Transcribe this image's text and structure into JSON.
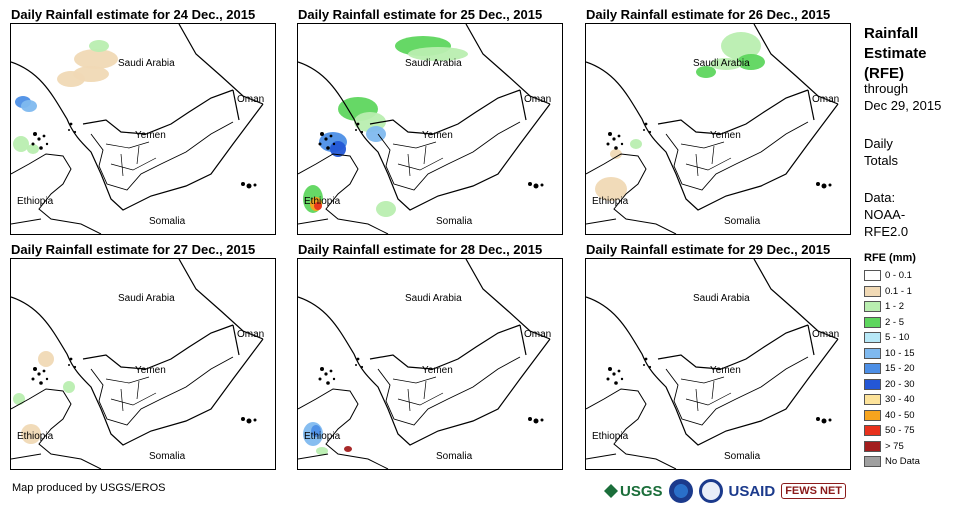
{
  "panels": [
    {
      "title": "Daily Rainfall estimate for 24 Dec., 2015"
    },
    {
      "title": "Daily Rainfall estimate for 25 Dec., 2015"
    },
    {
      "title": "Daily Rainfall estimate for 26 Dec., 2015"
    },
    {
      "title": "Daily Rainfall estimate for 27 Dec., 2015"
    },
    {
      "title": "Daily Rainfall estimate for 28 Dec., 2015"
    },
    {
      "title": "Daily Rainfall estimate for 29 Dec., 2015"
    }
  ],
  "map_labels": {
    "saudi": "Saudi Arabia",
    "oman": "Oman",
    "yemen": "Yemen",
    "ethiopia": "Ethiopia",
    "somalia": "Somalia"
  },
  "side": {
    "title_line1": "Rainfall",
    "title_line2": "Estimate",
    "title_line3": "(RFE)",
    "through": "through",
    "date": "Dec 29, 2015",
    "daily1": "Daily",
    "daily2": "Totals",
    "data1": "Data:",
    "data2": "NOAA-",
    "data3": "RFE2.0"
  },
  "legend": {
    "title": "RFE (mm)",
    "items": [
      {
        "label": "0 - 0.1",
        "color": "#ffffff"
      },
      {
        "label": "0.1 - 1",
        "color": "#f0d9b5"
      },
      {
        "label": "1 - 2",
        "color": "#b9eeb0"
      },
      {
        "label": "2 - 5",
        "color": "#5ed65e"
      },
      {
        "label": "5 - 10",
        "color": "#b7e8f7"
      },
      {
        "label": "10 - 15",
        "color": "#7fb9ef"
      },
      {
        "label": "15 - 20",
        "color": "#4d8fe6"
      },
      {
        "label": "20 - 30",
        "color": "#2457d6"
      },
      {
        "label": "30 - 40",
        "color": "#fde39a"
      },
      {
        "label": "40 - 50",
        "color": "#f7a41e"
      },
      {
        "label": "50 - 75",
        "color": "#e8311c"
      },
      {
        "label": "> 75",
        "color": "#a31d1d"
      },
      {
        "label": "No Data",
        "color": "#a0a0a0"
      }
    ]
  },
  "footer": {
    "credit": "Map produced by USGS/EROS",
    "logo_usgs": "USGS",
    "logo_usaid": "USAID",
    "logo_fews": "FEWS NET"
  }
}
